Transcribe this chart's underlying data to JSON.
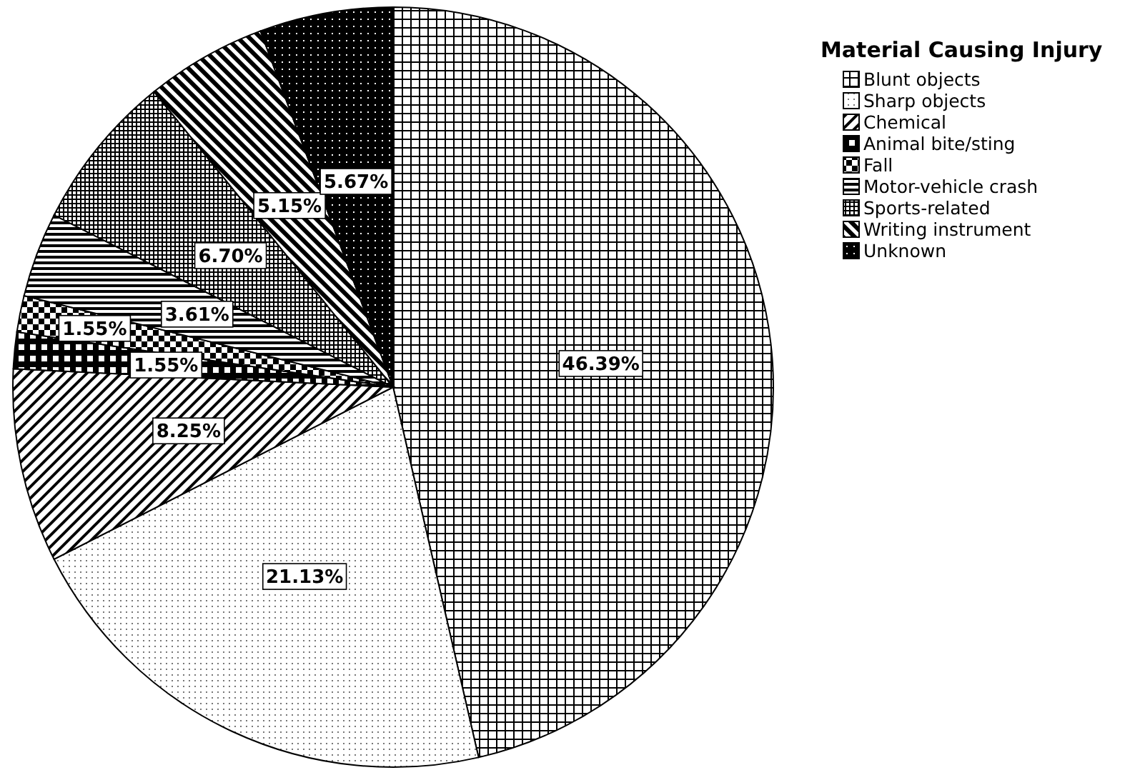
{
  "chart_data": {
    "type": "pie",
    "legend_title": "Material Causing Injury",
    "legend": "top right",
    "categories": [
      "Blunt objects",
      "Sharp objects",
      "Chemical",
      "Animal bite/sting",
      "Fall",
      "Motor-vehicle crash",
      "Sports-related",
      "Writing instrument",
      "Unknown"
    ],
    "values": [
      46.39,
      21.13,
      8.25,
      1.55,
      1.55,
      3.61,
      6.7,
      5.15,
      5.67
    ],
    "value_labels": [
      "46.39%",
      "21.13%",
      "8.25%",
      "1.55%",
      "1.55%",
      "3.61%",
      "6.70%",
      "5.15%",
      "5.67%"
    ]
  }
}
